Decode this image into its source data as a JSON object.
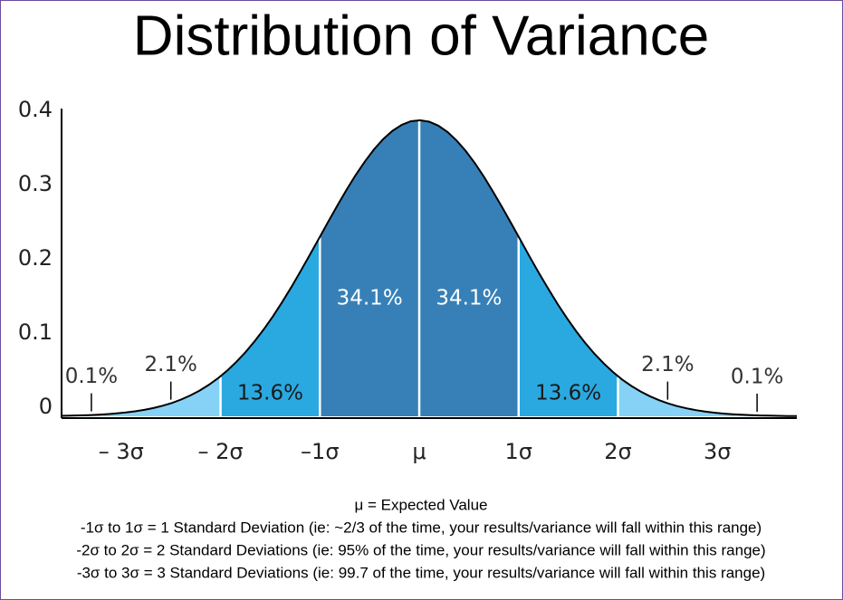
{
  "chart_data": {
    "type": "normal",
    "title": "Distribution of Variance",
    "xlim": [
      -3.6,
      3.8
    ],
    "xticks": [
      {
        "value": -3,
        "label": "– 3σ"
      },
      {
        "value": -2,
        "label": "– 2σ"
      },
      {
        "value": -1,
        "label": "–1σ"
      },
      {
        "value": 0,
        "label": "μ"
      },
      {
        "value": 1,
        "label": "1σ"
      },
      {
        "value": 2,
        "label": "2σ"
      },
      {
        "value": 3,
        "label": "3σ"
      }
    ],
    "ylim": [
      0,
      0.4
    ],
    "yticks": [
      0,
      0.1,
      0.2,
      0.3,
      0.4
    ],
    "values": [
      0.1,
      2.1,
      13.6,
      34.1,
      34.1,
      13.6,
      2.1,
      0.1
    ],
    "value_labels": [
      "0.1%",
      "2.1%",
      "13.6%",
      "34.1%",
      "34.1%",
      "13.6%",
      "2.1%",
      "0.1%"
    ],
    "colors": [
      "#86d2f7",
      "#86d2f7",
      "#2aa9e1",
      "#3780b7",
      "#3780b7",
      "#2aa9e1",
      "#86d2f7",
      "#86d2f7"
    ],
    "notes": [
      "μ = Expected Value",
      "-1σ to 1σ = 1 Standard Deviation (ie: ~2/3 of the time, your results/variance will fall within this range)",
      "-2σ to 2σ = 2 Standard Deviations (ie: 95% of the time, your results/variance will fall within this range)",
      "-3σ to 3σ = 3 Standard Deviations (ie: 99.7 of the time, your results/variance will fall within this range)"
    ]
  }
}
